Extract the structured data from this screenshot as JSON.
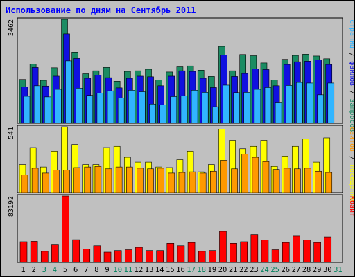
{
  "chart_data": {
    "type": "bar",
    "title": "Использование по дням на Сентябрь 2011",
    "categories": [
      "1",
      "2",
      "3",
      "4",
      "5",
      "6",
      "7",
      "8",
      "9",
      "10",
      "11",
      "12",
      "13",
      "14",
      "15",
      "16",
      "17",
      "18",
      "19",
      "20",
      "21",
      "22",
      "23",
      "24",
      "25",
      "26",
      "27",
      "28",
      "29",
      "30",
      "31"
    ],
    "weekend_days": [
      "3",
      "4",
      "10",
      "11",
      "17",
      "18",
      "24",
      "25",
      "31"
    ],
    "panels": [
      {
        "id": "requests",
        "max_label": "3462",
        "ylim": [
          0,
          3462
        ],
        "series": [
          {
            "name": "запросов",
            "color": "#1b8c63",
            "values": [
              1460,
              1970,
              1430,
              1850,
              3462,
              2370,
              1650,
              1750,
              1860,
              1400,
              1730,
              1750,
              1800,
              1440,
              1710,
              1880,
              1910,
              1770,
              1560,
              2560,
              1750,
              2290,
              2250,
              2010,
              1440,
              2130,
              2260,
              2300,
              2240,
              2150,
              0
            ]
          },
          {
            "name": "файлов",
            "color": "#1010e0",
            "values": [
              1210,
              1860,
              1240,
              1570,
              2980,
              2160,
              1500,
              1600,
              1520,
              1180,
              1500,
              1570,
              1550,
              1250,
              1570,
              1750,
              1730,
              1500,
              1190,
              2270,
              1560,
              1660,
              1810,
              1790,
              1250,
              1960,
              2050,
              2070,
              2110,
              1960,
              0
            ]
          },
          {
            "name": "страниц",
            "color": "#31b5ff",
            "values": [
              900,
              1250,
              880,
              1130,
              2080,
              1170,
              930,
              1000,
              1080,
              840,
              1100,
              1050,
              640,
              610,
              890,
              910,
              1100,
              1030,
              550,
              1270,
              1020,
              1030,
              1130,
              1190,
              680,
              1260,
              1360,
              1340,
              950,
              1340,
              0
            ]
          }
        ]
      },
      {
        "id": "visits",
        "max_label": "541",
        "ylim": [
          0,
          541
        ],
        "series": [
          {
            "name": "посещений",
            "color": "#ffff00",
            "values": [
              230,
              370,
              210,
              340,
              541,
              395,
              230,
              230,
              370,
              380,
              290,
              250,
              250,
              210,
              205,
              270,
              340,
              170,
              230,
              520,
              430,
              360,
              380,
              430,
              215,
              300,
              380,
              440,
              250,
              450,
              0
            ]
          },
          {
            "name": "сайтов",
            "color": "#ff9900",
            "values": [
              145,
              200,
              160,
              185,
              185,
              205,
              210,
              215,
              195,
              210,
              210,
              200,
              195,
              200,
              160,
              165,
              170,
              160,
              175,
              265,
              195,
              315,
              290,
              255,
              190,
              200,
              195,
              200,
              175,
              165,
              0
            ]
          }
        ],
        "right_extra_label": "/"
      },
      {
        "id": "traffic",
        "max_label": "83192",
        "ylim": [
          0,
          83192
        ],
        "series": [
          {
            "name": "Кбайт",
            "color": "#ff0000",
            "values": [
              26000,
              26500,
              14000,
              22000,
              83192,
              28500,
              17000,
              21000,
              13000,
              15000,
              16000,
              19000,
              15000,
              15000,
              24000,
              21000,
              25000,
              14000,
              15000,
              39000,
              24000,
              26000,
              35000,
              28000,
              16000,
              25000,
              33000,
              28000,
              25000,
              32000,
              0
            ]
          }
        ]
      }
    ],
    "right_labels": {
      "requests": [
        "запросов",
        "файлов",
        "страниц"
      ],
      "visits": [
        "посещений",
        "сайтов"
      ],
      "traffic": [
        "Кбайт"
      ]
    },
    "separator": " / ",
    "colors": {
      "background": "#c0c0c0",
      "panel_bg": "#c0c0c0",
      "title": "#0000ff",
      "weekday_tick": "#000000",
      "weekend_tick": "#00805c",
      "max_label": "#000000"
    }
  }
}
